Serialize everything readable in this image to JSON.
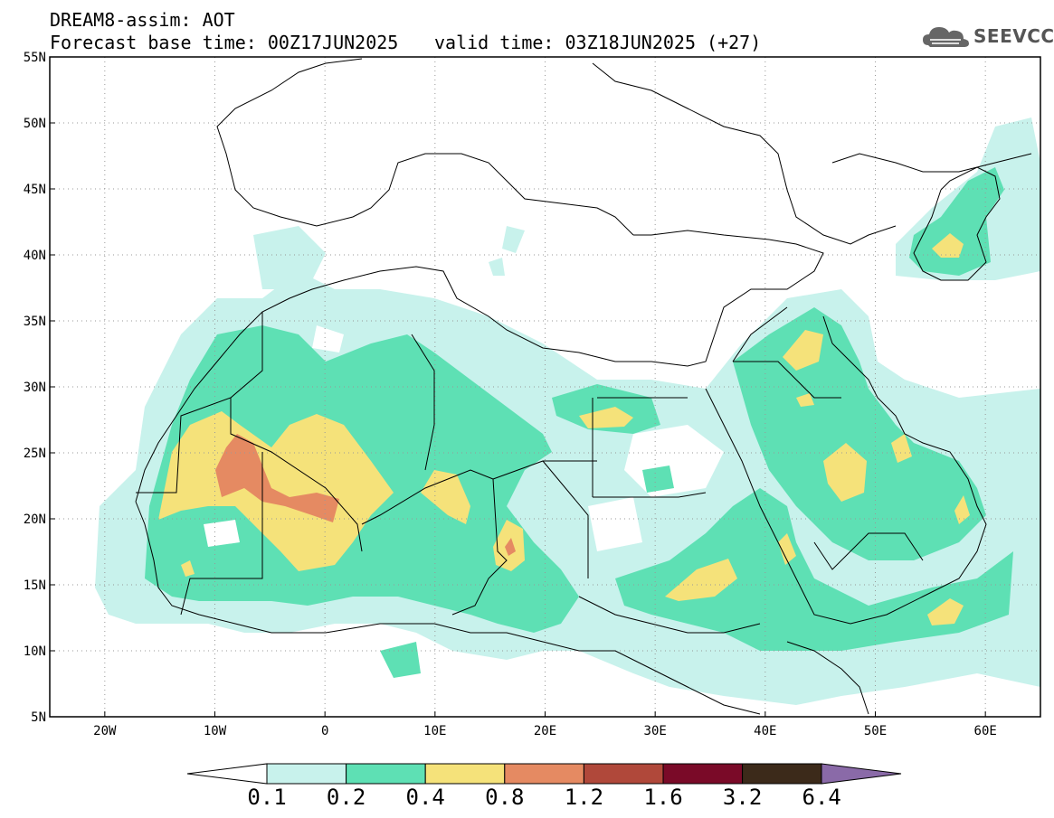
{
  "header": {
    "title_line1": "DREAM8-assim: AOT",
    "base_time": "Forecast base time: 00Z17JUN2025",
    "valid_time": "valid time: 03Z18JUN2025 (+27)"
  },
  "logo": {
    "text": "SEEVCCC",
    "icon": "cloud-logo-icon"
  },
  "map": {
    "lon_range": [
      -25,
      65
    ],
    "lat_range": [
      5,
      55
    ],
    "x_ticks": [
      {
        "lon": -20,
        "label": "20W"
      },
      {
        "lon": -10,
        "label": "10W"
      },
      {
        "lon": 0,
        "label": "0"
      },
      {
        "lon": 10,
        "label": "10E"
      },
      {
        "lon": 20,
        "label": "20E"
      },
      {
        "lon": 30,
        "label": "30E"
      },
      {
        "lon": 40,
        "label": "40E"
      },
      {
        "lon": 50,
        "label": "50E"
      },
      {
        "lon": 60,
        "label": "60E"
      }
    ],
    "y_ticks": [
      {
        "lat": 55,
        "label": "55N"
      },
      {
        "lat": 50,
        "label": "50N"
      },
      {
        "lat": 45,
        "label": "45N"
      },
      {
        "lat": 40,
        "label": "40N"
      },
      {
        "lat": 35,
        "label": "35N"
      },
      {
        "lat": 30,
        "label": "30N"
      },
      {
        "lat": 25,
        "label": "25N"
      },
      {
        "lat": 20,
        "label": "20N"
      },
      {
        "lat": 15,
        "label": "15N"
      },
      {
        "lat": 10,
        "label": "10N"
      },
      {
        "lat": 5,
        "label": "5N"
      }
    ]
  },
  "colorbar": {
    "labels": [
      "0.1",
      "0.2",
      "0.4",
      "0.8",
      "1.2",
      "1.6",
      "3.2",
      "6.4"
    ],
    "colors": [
      "#c8f2ec",
      "#5ee0b4",
      "#f5e27a",
      "#e58a62",
      "#b0483a",
      "#7a0a28",
      "#3c2a1a",
      "#8a6aa8"
    ]
  }
}
